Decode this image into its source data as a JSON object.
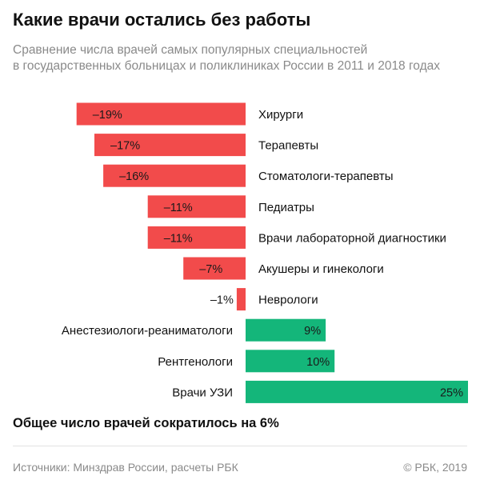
{
  "header": {
    "title": "Какие врачи остались без работы",
    "subtitle_line1": "Сравнение числа врачей самых популярных специальностей",
    "subtitle_line2": "в государственных больницах и поликлиниках России в 2011 и 2018 годах"
  },
  "chart_data": {
    "type": "bar",
    "orientation": "horizontal",
    "title": "Какие врачи остались без работы",
    "xlabel": "",
    "ylabel": "",
    "unit": "%",
    "xlim": [
      -19,
      25
    ],
    "categories": [
      "Хирурги",
      "Терапевты",
      "Стоматологи-терапевты",
      "Педиатры",
      "Врачи лабораторной диагностики",
      "Акушеры и гинекологи",
      "Неврологи",
      "Анестезиологи-реаниматологи",
      "Рентгенологи",
      "Врачи УЗИ"
    ],
    "values": [
      -19,
      -17,
      -16,
      -11,
      -11,
      -7,
      -1,
      9,
      10,
      25
    ],
    "value_labels": [
      "–19%",
      "–17%",
      "–16%",
      "–11%",
      "–11%",
      "–7%",
      "–1%",
      "9%",
      "10%",
      "25%"
    ],
    "colors": {
      "negative": "#f24b4b",
      "positive": "#14b67a"
    }
  },
  "summary": "Общее число врачей сократилось на 6%",
  "footer": {
    "source": "Источники: Минздрав России, расчеты РБК",
    "copyright": "© РБК, 2019"
  }
}
